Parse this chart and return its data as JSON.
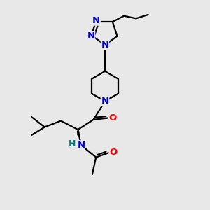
{
  "bg_color": "#e8e8e8",
  "bond_color": "#000000",
  "N_color": "#0000cd",
  "O_color": "#ff0000",
  "H_color": "#008080",
  "line_width": 1.6,
  "font_size": 9.5,
  "fig_size": [
    3.0,
    3.0
  ],
  "dpi": 100,
  "xlim": [
    0,
    10
  ],
  "ylim": [
    0,
    10
  ]
}
